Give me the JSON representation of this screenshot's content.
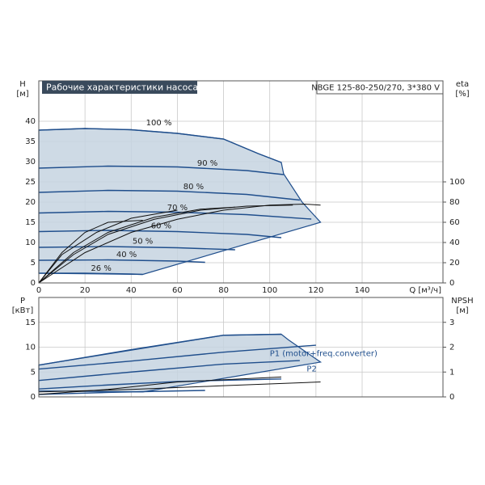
{
  "chart_data": [
    {
      "type": "line",
      "title": "Рабочие характеристики насоса",
      "subtitle": "NBGE 125-80-250/270, 3*380 V",
      "ylabel": [
        "H",
        "[м]"
      ],
      "y2label": [
        "eta",
        "[%]"
      ],
      "xlabel": "Q [м³/ч]",
      "xlim": [
        0,
        175
      ],
      "xticks": [
        0,
        20,
        40,
        60,
        80,
        100,
        120,
        140
      ],
      "ylim": [
        0,
        50
      ],
      "yticks": [
        0,
        5,
        10,
        15,
        20,
        25,
        30,
        35,
        40
      ],
      "y2lim": [
        0,
        200
      ],
      "y2ticks": [
        0,
        20,
        40,
        60,
        80,
        100
      ],
      "grid": true,
      "xtick_labels": true,
      "series": [
        {
          "color": "#1f4e8c",
          "fill": "#c5d3e1",
          "x": [
            0,
            20,
            40,
            60,
            80,
            95,
            105,
            106,
            114,
            122,
            45,
            0
          ],
          "values": [
            37.8,
            38.2,
            37.9,
            37,
            35.6,
            32,
            29.8,
            27,
            20,
            15,
            2.1,
            2.4
          ]
        },
        {
          "name": "100 %",
          "color": "#1f4e8c",
          "x": [
            0,
            20,
            40,
            60,
            80,
            95,
            105
          ],
          "values": [
            37.8,
            38.2,
            37.9,
            37,
            35.6,
            32,
            29.8
          ],
          "label_at": [
            52,
            39.6
          ]
        },
        {
          "name": "90 %",
          "color": "#1f4e8c",
          "x": [
            0,
            30,
            60,
            90,
            106
          ],
          "values": [
            28.4,
            28.9,
            28.7,
            27.8,
            26.8
          ],
          "label_at": [
            73,
            29.6
          ]
        },
        {
          "name": "80 %",
          "color": "#1f4e8c",
          "x": [
            0,
            30,
            60,
            90,
            113
          ],
          "values": [
            22.4,
            22.9,
            22.7,
            21.9,
            20.5
          ],
          "label_at": [
            67,
            23.8
          ]
        },
        {
          "name": "70 %",
          "color": "#1f4e8c",
          "x": [
            0,
            30,
            60,
            90,
            118
          ],
          "values": [
            17.3,
            17.7,
            17.5,
            16.9,
            15.8
          ],
          "label_at": [
            60,
            18.6
          ]
        },
        {
          "name": "60 %",
          "color": "#1f4e8c",
          "x": [
            0,
            30,
            60,
            90,
            105
          ],
          "values": [
            12.7,
            13,
            12.7,
            12,
            11.2
          ],
          "label_at": [
            53,
            14.1
          ]
        },
        {
          "name": "50 %",
          "color": "#1f4e8c",
          "x": [
            0,
            30,
            60,
            85
          ],
          "values": [
            8.8,
            9,
            8.7,
            8.2
          ],
          "label_at": [
            45,
            10.3
          ]
        },
        {
          "name": "40 %",
          "color": "#1f4e8c",
          "x": [
            0,
            30,
            60,
            72
          ],
          "values": [
            5.6,
            5.7,
            5.4,
            5.1
          ],
          "label_at": [
            38,
            7
          ]
        },
        {
          "name": "26 %",
          "color": "#1f4e8c",
          "x": [
            0,
            20,
            40,
            45
          ],
          "values": [
            2.4,
            2.4,
            2.2,
            2.1
          ],
          "label_at": [
            27,
            3.6
          ]
        },
        {
          "axis": "y2",
          "color": "#111",
          "x": [
            0,
            20,
            40,
            60,
            80,
            100,
            115,
            122
          ],
          "values": [
            0,
            30,
            50,
            63,
            72,
            77,
            78,
            77
          ]
        },
        {
          "axis": "y2",
          "color": "#111",
          "x": [
            0,
            15,
            30,
            50,
            70,
            90,
            110
          ],
          "values": [
            0,
            28,
            48,
            63,
            72,
            76,
            77
          ]
        },
        {
          "axis": "y2",
          "color": "#111",
          "x": [
            0,
            15,
            30,
            50,
            70,
            85
          ],
          "values": [
            0,
            30,
            50,
            65,
            73,
            75
          ]
        },
        {
          "axis": "y2",
          "color": "#111",
          "x": [
            0,
            10,
            25,
            40,
            60
          ],
          "values": [
            0,
            28,
            50,
            64,
            72
          ]
        },
        {
          "axis": "y2",
          "color": "#111",
          "x": [
            0,
            10,
            20,
            30,
            45
          ],
          "values": [
            0,
            30,
            50,
            60,
            62
          ]
        }
      ]
    },
    {
      "type": "line",
      "ylabel": [
        "P",
        "[кВт]"
      ],
      "y2label": [
        "NPSH",
        "[м]"
      ],
      "xlim": [
        0,
        175
      ],
      "xticks": [
        0,
        20,
        40,
        60,
        80,
        100,
        120,
        140
      ],
      "ylim": [
        0,
        20
      ],
      "yticks": [
        0,
        5,
        10,
        15
      ],
      "y2lim": [
        0,
        4
      ],
      "y2ticks": [
        0,
        1,
        2,
        3
      ],
      "grid": true,
      "xtick_labels": false,
      "annotations": [
        {
          "text": "P1 (motor+freq.converter)",
          "x": 100,
          "y": 8.7
        },
        {
          "text": "P2",
          "x": 116,
          "y": 5.6
        }
      ],
      "series": [
        {
          "color": "#1f4e8c",
          "fill": "#c5d3e1",
          "x": [
            0,
            80,
            105,
            108,
            122,
            45,
            0
          ],
          "values": [
            6.4,
            12.4,
            12.6,
            11.5,
            7,
            1.0,
            1.2
          ]
        },
        {
          "color": "#1f4e8c",
          "x": [
            0,
            40,
            80,
            105
          ],
          "values": [
            6.4,
            9.5,
            12.4,
            12.6
          ]
        },
        {
          "color": "#1f4e8c",
          "x": [
            0,
            40,
            80,
            120
          ],
          "values": [
            5.6,
            7.2,
            9,
            10.4
          ]
        },
        {
          "color": "#1f4e8c",
          "x": [
            0,
            40,
            80,
            113
          ],
          "values": [
            3.3,
            5,
            6.6,
            7.3
          ]
        },
        {
          "color": "#1f4e8c",
          "x": [
            0,
            30,
            60,
            105
          ],
          "values": [
            1.6,
            2.4,
            3.1,
            3.6
          ]
        },
        {
          "color": "#1f4e8c",
          "x": [
            0,
            30,
            60,
            72
          ],
          "values": [
            0.5,
            0.9,
            1.2,
            1.3
          ]
        },
        {
          "axis": "y2",
          "color": "#111",
          "x": [
            0,
            40,
            80,
            122
          ],
          "values": [
            0.2,
            0.3,
            0.45,
            0.6
          ]
        },
        {
          "axis": "y2",
          "color": "#111",
          "x": [
            0,
            30,
            60,
            105
          ],
          "values": [
            0.1,
            0.3,
            0.6,
            0.8
          ]
        }
      ]
    }
  ]
}
